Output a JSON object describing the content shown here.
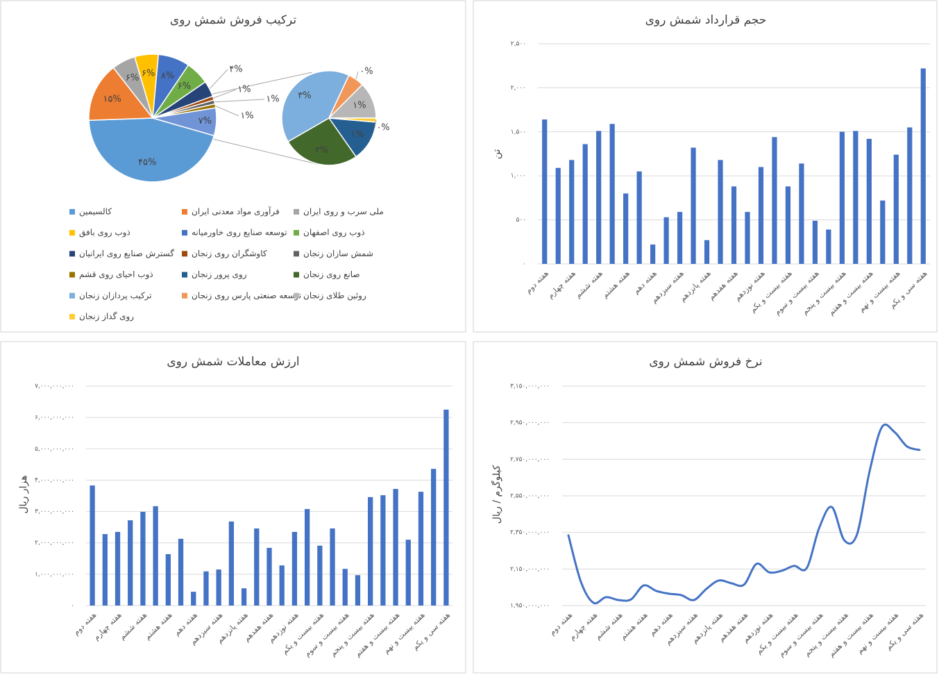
{
  "chart_data": [
    {
      "type": "pie-of-pie",
      "title": "ترکیب فروش شمش روی",
      "slices": [
        {
          "name": "کالسیمین",
          "color": "#5b9bd5",
          "value": 45,
          "value_label": "۴۵%",
          "plot": "primary"
        },
        {
          "name": "فرآوری مواد معدنی ایران",
          "color": "#ed7d31",
          "value": 15,
          "value_label": "۱۵%",
          "plot": "primary"
        },
        {
          "name": "ملی سرب و روی ایران",
          "color": "#a5a5a5",
          "value": 6,
          "value_label": "۶%",
          "plot": "primary"
        },
        {
          "name": "ذوب روی بافق",
          "color": "#ffc000",
          "value": 6,
          "value_label": "۶%",
          "plot": "primary"
        },
        {
          "name": "توسعه صنایع روی خاورمیانه",
          "color": "#4472c4",
          "value": 8,
          "value_label": "۸%",
          "plot": "primary"
        },
        {
          "name": "ذوب روی اصفهان",
          "color": "#70ad47",
          "value": 6,
          "value_label": "۶%",
          "plot": "primary"
        },
        {
          "name": "گسترش صنایع روی ایرانیان",
          "color": "#264478",
          "value": 4,
          "value_label": "۴%",
          "plot": "primary"
        },
        {
          "name": "کاوشگران روی زنجان",
          "color": "#9e480e",
          "value": 1,
          "value_label": "۱%",
          "plot": "primary"
        },
        {
          "name": "شمش سازان زنجان",
          "color": "#636363",
          "value": 1,
          "value_label": "۱%",
          "plot": "primary"
        },
        {
          "name": "ذوب احیای روی قشم",
          "color": "#997300",
          "value": 1,
          "value_label": "۱%",
          "plot": "primary"
        },
        {
          "name": "روی پرور زنجان",
          "color": "#255e91",
          "value": 1.0,
          "value_label": "۱%",
          "plot": "secondary"
        },
        {
          "name": "صانع روی زنجان",
          "color": "#43682b",
          "value": 1.9,
          "value_label": "۲%",
          "plot": "secondary"
        },
        {
          "name": "ترکیب پردازان زنجان",
          "color": "#7cafdd",
          "value": 2.9,
          "value_label": "۳%",
          "plot": "secondary"
        },
        {
          "name": "توسعه صنعتی پارس روی زنجان",
          "color": "#f1975a",
          "value": 0.4,
          "value_label": "۰%",
          "plot": "secondary"
        },
        {
          "name": "روئین طلای زنجان",
          "color": "#b7b7b7",
          "value": 0.9,
          "value_label": "۱%",
          "plot": "secondary"
        },
        {
          "name": "روی گداز زنجان",
          "color": "#ffcd33",
          "value": 0.1,
          "value_label": "۰%",
          "plot": "secondary"
        }
      ],
      "other": {
        "value": 7,
        "label": "۷%"
      }
    },
    {
      "type": "bar",
      "title": "حجم قرارداد شمش روی",
      "y_label": "تن",
      "color": "#4472c4",
      "grid": true,
      "categories": [
        "هفته دوم",
        null,
        "هفته چهارم",
        null,
        "هفته ششم",
        null,
        "هفته هشتم",
        null,
        "هفته دهم",
        null,
        "هفته سیزدهم",
        null,
        "هفته پانزدهم",
        null,
        "هفته هفدهم",
        null,
        "هفته نوزدهم",
        null,
        "هفته بیست و یکم",
        null,
        "هفته بیست و سوم",
        null,
        "هفته بیست و پنجم",
        null,
        "هفته بیست و هفتم",
        null,
        "هفته بیست و نهم",
        null,
        "هفته سی و یکم"
      ],
      "values": [
        1640,
        1090,
        1180,
        1360,
        1510,
        1590,
        800,
        1050,
        220,
        530,
        590,
        1320,
        270,
        1180,
        880,
        590,
        1100,
        1440,
        880,
        1140,
        490,
        390,
        1500,
        1510,
        1420,
        720,
        1240,
        1550,
        2220
      ],
      "ylim": [
        0,
        2500
      ],
      "yticks": [
        {
          "value": 0,
          "label": "۰"
        },
        {
          "value": 500,
          "label": "۵۰۰"
        },
        {
          "value": 1000,
          "label": "۱,۰۰۰"
        },
        {
          "value": 1500,
          "label": "۱,۵۰۰"
        },
        {
          "value": 2000,
          "label": "۲,۰۰۰"
        },
        {
          "value": 2500,
          "label": "۲,۵۰۰"
        }
      ]
    },
    {
      "type": "bar",
      "title": "ارزش معاملات شمش روی",
      "y_label": "هزار ریال",
      "color": "#4472c4",
      "grid": true,
      "categories": [
        "هفته دوم",
        null,
        "هفته چهارم",
        null,
        "هفته ششم",
        null,
        "هفته هشتم",
        null,
        "هفته دهم",
        null,
        "هفته سیزدهم",
        null,
        "هفته پانزدهم",
        null,
        "هفته هفدهم",
        null,
        "هفته نوزدهم",
        null,
        "هفته بیست و یکم",
        null,
        "هفته بیست و سوم",
        null,
        "هفته بیست و پنجم",
        null,
        "هفته بیست و هفتم",
        null,
        "هفته بیست و نهم",
        null,
        "هفته سی و یکم"
      ],
      "values": [
        3830000000,
        2280000000,
        2350000000,
        2720000000,
        2990000000,
        3170000000,
        1640000000,
        2130000000,
        440000000,
        1090000000,
        1150000000,
        2680000000,
        550000000,
        2460000000,
        1840000000,
        1280000000,
        2350000000,
        3080000000,
        1910000000,
        2460000000,
        1170000000,
        970000000,
        3460000000,
        3520000000,
        3720000000,
        2100000000,
        3630000000,
        4360000000,
        6250000000
      ],
      "ylim": [
        0,
        7000000000
      ],
      "yticks": [
        {
          "value": 0,
          "label": "۰"
        },
        {
          "value": 1000000000,
          "label": "۱,۰۰۰,۰۰۰,۰۰۰"
        },
        {
          "value": 2000000000,
          "label": "۲,۰۰۰,۰۰۰,۰۰۰"
        },
        {
          "value": 3000000000,
          "label": "۳,۰۰۰,۰۰۰,۰۰۰"
        },
        {
          "value": 4000000000,
          "label": "۴,۰۰۰,۰۰۰,۰۰۰"
        },
        {
          "value": 5000000000,
          "label": "۵,۰۰۰,۰۰۰,۰۰۰"
        },
        {
          "value": 6000000000,
          "label": "۶,۰۰۰,۰۰۰,۰۰۰"
        },
        {
          "value": 7000000000,
          "label": "۷,۰۰۰,۰۰۰,۰۰۰"
        }
      ]
    },
    {
      "type": "line",
      "title": "نرخ فروش شمش روی",
      "y_label": "کیلوگرم / ریال",
      "color": "#4472c4",
      "grid": true,
      "categories": [
        "هفته دوم",
        null,
        "هفته چهارم",
        null,
        "هفته ششم",
        null,
        "هفته هشتم",
        null,
        "هفته دهم",
        null,
        "هفته سیزدهم",
        null,
        "هفته پانزدهم",
        null,
        "هفته هفدهم",
        null,
        "هفته نوزدهم",
        null,
        "هفته بیست و یکم",
        null,
        "هفته بیست و سوم",
        null,
        "هفته بیست و پنجم",
        null,
        "هفته بیست و هفتم",
        null,
        "هفته بیست و نهم",
        null,
        "هفته سی و یکم"
      ],
      "values": [
        2334000000,
        2079000000,
        1965000000,
        1996000000,
        1980000000,
        1984000000,
        2060000000,
        2030000000,
        2015000000,
        2007000000,
        1980000000,
        2041000000,
        2087000000,
        2072000000,
        2064000000,
        2178000000,
        2132000000,
        2140000000,
        2167000000,
        2155000000,
        2375000000,
        2489000000,
        2307000000,
        2337000000,
        2679000000,
        2926000000,
        2899000000,
        2820000000,
        2801000000
      ],
      "ylim": [
        1950000000,
        3150000000
      ],
      "yticks": [
        {
          "value": 1950000000,
          "label": "۱,۹۵۰,۰۰۰,۰۰۰"
        },
        {
          "value": 2150000000,
          "label": "۲,۱۵۰,۰۰۰,۰۰۰"
        },
        {
          "value": 2350000000,
          "label": "۲,۳۵۰,۰۰۰,۰۰۰"
        },
        {
          "value": 2550000000,
          "label": "۲,۵۵۰,۰۰۰,۰۰۰"
        },
        {
          "value": 2750000000,
          "label": "۲,۷۵۰,۰۰۰,۰۰۰"
        },
        {
          "value": 2950000000,
          "label": "۲,۹۵۰,۰۰۰,۰۰۰"
        },
        {
          "value": 3150000000,
          "label": "۳,۱۵۰,۰۰۰,۰۰۰"
        }
      ]
    }
  ]
}
